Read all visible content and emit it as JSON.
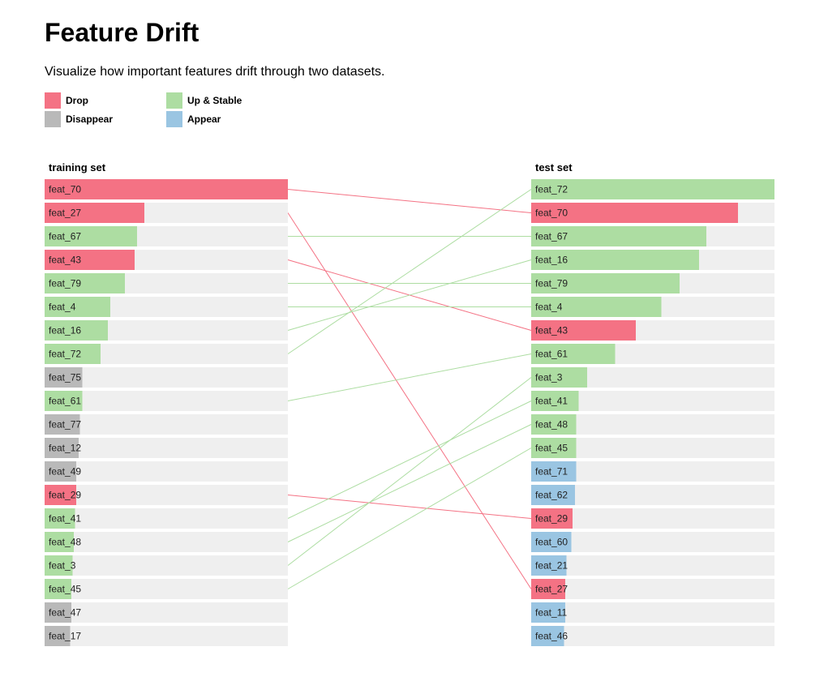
{
  "header": {
    "title": "Feature Drift",
    "subtitle": "Visualize how important features drift through two datasets."
  },
  "legend": [
    {
      "label": "Drop",
      "color": "#f47284"
    },
    {
      "label": "Disappear",
      "color": "#b9b9b9"
    },
    {
      "label": "Up & Stable",
      "color": "#addda2"
    },
    {
      "label": "Appear",
      "color": "#9ac5e2"
    }
  ],
  "chart_data": {
    "type": "bar",
    "colors": {
      "drop": "#f47284",
      "disappear": "#b9b9b9",
      "up_stable": "#addda2",
      "appear": "#9ac5e2",
      "track": "#efefef"
    },
    "columns": [
      {
        "title": "training set",
        "bars": [
          {
            "label": "feat_70",
            "value": 1.0,
            "status": "drop"
          },
          {
            "label": "feat_27",
            "value": 0.41,
            "status": "drop"
          },
          {
            "label": "feat_67",
            "value": 0.38,
            "status": "up_stable"
          },
          {
            "label": "feat_43",
            "value": 0.37,
            "status": "drop"
          },
          {
            "label": "feat_79",
            "value": 0.33,
            "status": "up_stable"
          },
          {
            "label": "feat_4",
            "value": 0.27,
            "status": "up_stable"
          },
          {
            "label": "feat_16",
            "value": 0.26,
            "status": "up_stable"
          },
          {
            "label": "feat_72",
            "value": 0.23,
            "status": "up_stable"
          },
          {
            "label": "feat_75",
            "value": 0.155,
            "status": "disappear"
          },
          {
            "label": "feat_61",
            "value": 0.155,
            "status": "up_stable"
          },
          {
            "label": "feat_77",
            "value": 0.145,
            "status": "disappear"
          },
          {
            "label": "feat_12",
            "value": 0.14,
            "status": "disappear"
          },
          {
            "label": "feat_49",
            "value": 0.13,
            "status": "disappear"
          },
          {
            "label": "feat_29",
            "value": 0.13,
            "status": "drop"
          },
          {
            "label": "feat_41",
            "value": 0.125,
            "status": "up_stable"
          },
          {
            "label": "feat_48",
            "value": 0.12,
            "status": "up_stable"
          },
          {
            "label": "feat_3",
            "value": 0.115,
            "status": "up_stable"
          },
          {
            "label": "feat_45",
            "value": 0.11,
            "status": "up_stable"
          },
          {
            "label": "feat_47",
            "value": 0.11,
            "status": "disappear"
          },
          {
            "label": "feat_17",
            "value": 0.105,
            "status": "disappear"
          }
        ]
      },
      {
        "title": "test set",
        "bars": [
          {
            "label": "feat_72",
            "value": 1.0,
            "status": "up_stable"
          },
          {
            "label": "feat_70",
            "value": 0.85,
            "status": "drop"
          },
          {
            "label": "feat_67",
            "value": 0.72,
            "status": "up_stable"
          },
          {
            "label": "feat_16",
            "value": 0.69,
            "status": "up_stable"
          },
          {
            "label": "feat_79",
            "value": 0.61,
            "status": "up_stable"
          },
          {
            "label": "feat_4",
            "value": 0.535,
            "status": "up_stable"
          },
          {
            "label": "feat_43",
            "value": 0.43,
            "status": "drop"
          },
          {
            "label": "feat_61",
            "value": 0.345,
            "status": "up_stable"
          },
          {
            "label": "feat_3",
            "value": 0.23,
            "status": "up_stable"
          },
          {
            "label": "feat_41",
            "value": 0.195,
            "status": "up_stable"
          },
          {
            "label": "feat_48",
            "value": 0.185,
            "status": "up_stable"
          },
          {
            "label": "feat_45",
            "value": 0.185,
            "status": "up_stable"
          },
          {
            "label": "feat_71",
            "value": 0.185,
            "status": "appear"
          },
          {
            "label": "feat_62",
            "value": 0.18,
            "status": "appear"
          },
          {
            "label": "feat_29",
            "value": 0.17,
            "status": "drop"
          },
          {
            "label": "feat_60",
            "value": 0.165,
            "status": "appear"
          },
          {
            "label": "feat_21",
            "value": 0.145,
            "status": "appear"
          },
          {
            "label": "feat_27",
            "value": 0.14,
            "status": "drop"
          },
          {
            "label": "feat_11",
            "value": 0.14,
            "status": "appear"
          },
          {
            "label": "feat_46",
            "value": 0.135,
            "status": "appear"
          }
        ]
      }
    ]
  }
}
